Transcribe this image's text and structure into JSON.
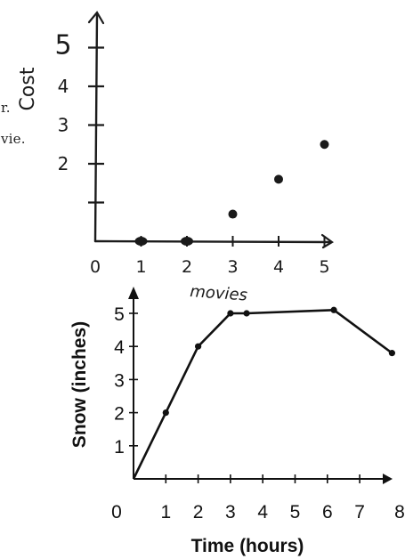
{
  "page_fragments": [
    "r.",
    "vie."
  ],
  "chart_data": [
    {
      "type": "scatter",
      "xlabel": "movies",
      "ylabel": "Cost",
      "x_ticks": [
        "0",
        "1",
        "2",
        "3",
        "4",
        "5"
      ],
      "y_ticks": [
        "2",
        "3",
        "4",
        "5"
      ],
      "xlim": [
        0,
        5.3
      ],
      "ylim": [
        0,
        5.6
      ],
      "points": [
        {
          "x": 1,
          "y": 0
        },
        {
          "x": 2,
          "y": 0
        },
        {
          "x": 3,
          "y": 0.7
        },
        {
          "x": 4,
          "y": 1.6
        },
        {
          "x": 5,
          "y": 2.5
        }
      ],
      "marker_color": "#1a1a1a",
      "grid": false
    },
    {
      "type": "line",
      "xlabel": "Time (hours)",
      "ylabel": "Snow (inches)",
      "x_ticks": [
        "0",
        "1",
        "2",
        "3",
        "4",
        "5",
        "6",
        "7",
        "8"
      ],
      "y_ticks": [
        "1",
        "2",
        "3",
        "4",
        "5"
      ],
      "xlim": [
        0,
        8.2
      ],
      "ylim": [
        0,
        5.6
      ],
      "series": [
        {
          "x": [
            0,
            1,
            2,
            3,
            3.5,
            6.2,
            8
          ],
          "y": [
            0,
            2,
            4,
            5,
            5,
            5.1,
            3.8
          ]
        }
      ],
      "line_color": "#111111",
      "grid": false
    }
  ]
}
